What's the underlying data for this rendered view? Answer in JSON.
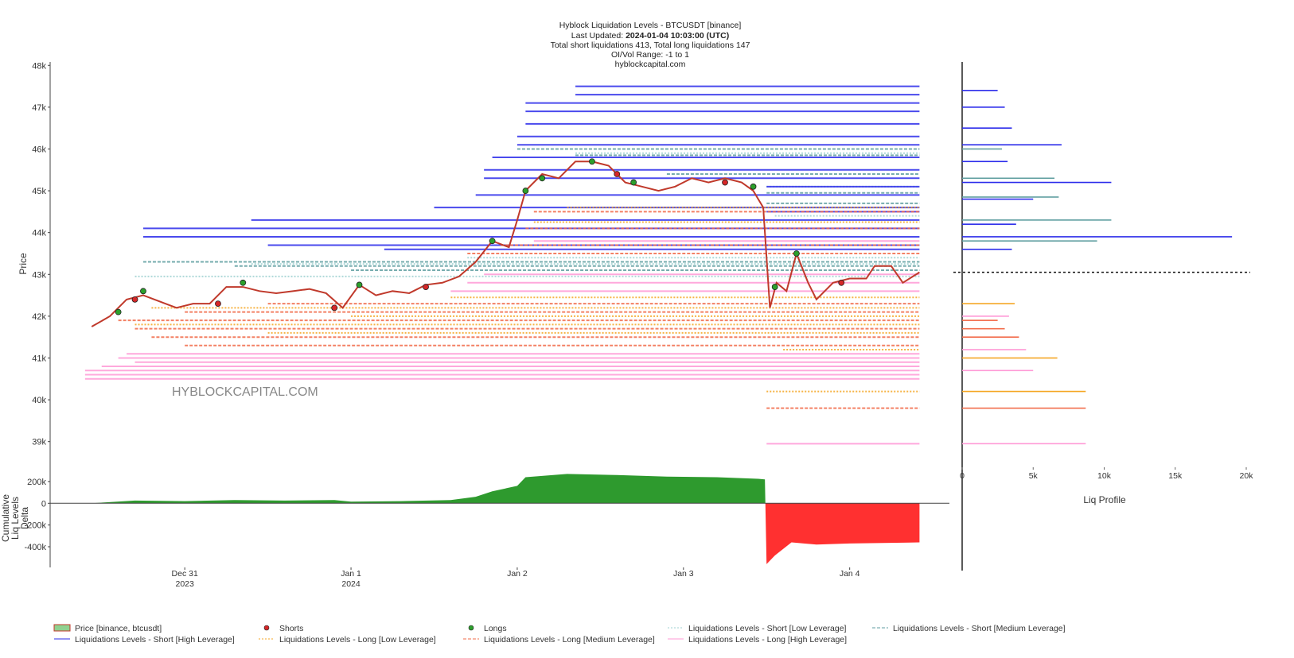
{
  "chart_data": [
    {
      "type": "line",
      "title": "Hyblock Liquidation Levels - BTCUSDT [binance]",
      "updated_label": "Last Updated:",
      "updated": "2024-01-04 10:03:00 (UTC)",
      "summary": "Total short liquidations 413, Total long liquidations 147",
      "range_note": "OI/Vol Range: -1 to 1",
      "source": "hyblockcapital.com",
      "watermark": "HYBLOCKCAPITAL.COM",
      "ylabel": "Price",
      "xlim": [
        -0.81,
        4.6
      ],
      "ylim": [
        38500,
        48100
      ],
      "yticks": [
        {
          "value": 39000,
          "label": "39k"
        },
        {
          "value": 40000,
          "label": "40k"
        },
        {
          "value": 41000,
          "label": "41k"
        },
        {
          "value": 42000,
          "label": "42k"
        },
        {
          "value": 43000,
          "label": "43k"
        },
        {
          "value": 44000,
          "label": "44k"
        },
        {
          "value": 45000,
          "label": "45k"
        },
        {
          "value": 46000,
          "label": "46k"
        },
        {
          "value": 47000,
          "label": "47k"
        },
        {
          "value": 48000,
          "label": "48k"
        }
      ],
      "series": [
        {
          "name": "Price [binance, btcusdt]",
          "kind": "line",
          "color": "#c0392b",
          "x": [
            -0.56,
            -0.45,
            -0.35,
            -0.25,
            -0.15,
            -0.05,
            0.05,
            0.15,
            0.25,
            0.35,
            0.45,
            0.55,
            0.65,
            0.75,
            0.85,
            0.95,
            1.05,
            1.15,
            1.25,
            1.35,
            1.45,
            1.55,
            1.65,
            1.75,
            1.85,
            1.95,
            2.0,
            2.05,
            2.15,
            2.25,
            2.35,
            2.45,
            2.55,
            2.65,
            2.75,
            2.85,
            2.95,
            3.05,
            3.15,
            3.25,
            3.35,
            3.42,
            3.48,
            3.52,
            3.56,
            3.62,
            3.68,
            3.75,
            3.8,
            3.9,
            4.0,
            4.1,
            4.15,
            4.25,
            4.32,
            4.42
          ],
          "values": [
            41750,
            42000,
            42400,
            42500,
            42350,
            42200,
            42300,
            42300,
            42700,
            42700,
            42600,
            42550,
            42600,
            42650,
            42550,
            42200,
            42750,
            42500,
            42600,
            42550,
            42750,
            42800,
            42950,
            43300,
            43800,
            43650,
            44300,
            45000,
            45400,
            45300,
            45700,
            45700,
            45600,
            45200,
            45100,
            45000,
            45100,
            45300,
            45200,
            45300,
            45200,
            45000,
            44600,
            42200,
            42800,
            42600,
            43500,
            42800,
            42400,
            42800,
            42900,
            42900,
            43200,
            43200,
            42800,
            43050
          ]
        },
        {
          "name": "Shorts",
          "kind": "scatter",
          "color": "#d62728",
          "x": [
            -0.3,
            0.2,
            0.9,
            1.45,
            2.6,
            3.25,
            3.95
          ],
          "values": [
            42400,
            42300,
            42200,
            42700,
            45400,
            45200,
            42800
          ]
        },
        {
          "name": "Longs",
          "kind": "scatter",
          "color": "#2ca02c",
          "x": [
            -0.4,
            -0.25,
            0.35,
            1.05,
            1.85,
            2.05,
            2.15,
            2.45,
            2.7,
            3.42,
            3.68,
            3.55
          ],
          "values": [
            42100,
            42600,
            42800,
            42750,
            43800,
            45000,
            45300,
            45700,
            45200,
            45100,
            43500,
            42700
          ]
        },
        {
          "name": "Liquidations Levels - Short [Low Leverage]",
          "kind": "level",
          "color": "#9fd2d2",
          "dash": "2,2",
          "x": [
            2.35,
            3.5,
            3.55,
            1.7,
            0.4,
            -0.3
          ],
          "values": [
            45900,
            45100,
            44400,
            43400,
            43250,
            42950
          ]
        },
        {
          "name": "Liquidations Levels - Short [Medium Leverage]",
          "kind": "level",
          "color": "#5f9ea0",
          "dash": "4,2",
          "x": [
            2.0,
            2.35,
            2.9,
            3.5,
            3.5,
            -0.25,
            0.3,
            1.0
          ],
          "values": [
            46000,
            45850,
            45400,
            44950,
            44700,
            43300,
            43200,
            43100
          ]
        },
        {
          "name": "Liquidations Levels - Short [High Leverage]",
          "kind": "level",
          "color": "#2b2bea",
          "dash": "none",
          "x": [
            2.35,
            2.35,
            2.05,
            2.05,
            2.05,
            2.0,
            2.0,
            1.85,
            1.8,
            1.8,
            1.75,
            1.5,
            0.4,
            -0.25,
            -0.25,
            0.5,
            1.2,
            3.5,
            3.5
          ],
          "values": [
            47500,
            47300,
            47100,
            46900,
            46600,
            46300,
            46100,
            45800,
            45500,
            45300,
            44900,
            44600,
            44300,
            44100,
            43900,
            43700,
            43600,
            44500,
            45100
          ]
        },
        {
          "name": "Liquidations Levels - Long [Low Leverage]",
          "kind": "level",
          "color": "#f5a623",
          "dash": "2,2",
          "x": [
            2.3,
            2.1,
            1.6,
            -0.2,
            1.0,
            -0.3,
            0.5,
            3.5,
            3.6
          ],
          "values": [
            44600,
            44250,
            42450,
            42200,
            42000,
            41800,
            41600,
            40200,
            41200
          ]
        },
        {
          "name": "Liquidations Levels - Long [Medium Leverage]",
          "kind": "level",
          "color": "#f26b4a",
          "dash": "4,2",
          "x": [
            2.1,
            2.05,
            1.9,
            1.7,
            0.5,
            0.0,
            -0.4,
            -0.3,
            -0.2,
            0.0,
            3.5
          ],
          "values": [
            44500,
            44100,
            43700,
            43500,
            42300,
            42100,
            41900,
            41700,
            41500,
            41300,
            39800
          ]
        },
        {
          "name": "Liquidations Levels - Long [High Leverage]",
          "kind": "level",
          "color": "#ff99d6",
          "dash": "none",
          "x": [
            2.1,
            1.8,
            1.7,
            1.6,
            -0.35,
            -0.4,
            -0.3,
            -0.5,
            -0.6,
            -0.6,
            -0.6,
            3.5
          ],
          "values": [
            43800,
            43000,
            42800,
            42600,
            41100,
            41000,
            40900,
            40800,
            40700,
            40600,
            40500,
            38950
          ]
        }
      ]
    },
    {
      "type": "area",
      "ylabel_lines": [
        "Cumulative",
        "Liq Levels",
        "Delta"
      ],
      "color": "#2e9a2e",
      "negative_color": "#ff3030",
      "xlim": [
        -0.81,
        4.6
      ],
      "ylim": [
        -590000,
        280000
      ],
      "yticks": [
        {
          "value": 200000,
          "label": "200k"
        },
        0,
        {
          "value": -200000,
          "label": "-200k"
        },
        {
          "value": -400000,
          "label": "-400k"
        }
      ],
      "xticks": [
        {
          "value": 0,
          "label": "Dec 31"
        },
        {
          "value": 1,
          "label": "Jan 1"
        },
        {
          "value": 2,
          "label": "Jan 2"
        },
        {
          "value": 3,
          "label": "Jan 3"
        },
        {
          "value": 4,
          "label": "Jan 4"
        }
      ],
      "xtick_years": [
        {
          "value": 0,
          "label": "2023"
        },
        {
          "value": 1,
          "label": "2024"
        }
      ],
      "x": [
        -0.56,
        -0.3,
        0,
        0.3,
        0.6,
        0.9,
        1.0,
        1.3,
        1.6,
        1.75,
        1.85,
        2.0,
        2.05,
        2.3,
        2.6,
        2.9,
        3.2,
        3.45,
        3.49,
        3.5,
        3.55,
        3.65,
        3.8,
        4.0,
        4.42
      ],
      "values": [
        0,
        25000,
        20000,
        30000,
        25000,
        30000,
        15000,
        20000,
        30000,
        60000,
        110000,
        160000,
        240000,
        270000,
        260000,
        245000,
        240000,
        225000,
        220000,
        -560000,
        -480000,
        -360000,
        -380000,
        -370000,
        -360000
      ]
    },
    {
      "type": "bar",
      "orientation": "horizontal",
      "xlabel": "Liq Profile",
      "xlim": [
        0,
        20000
      ],
      "ylim": [
        38500,
        48100
      ],
      "current_price": 43050,
      "xticks": [
        0,
        {
          "value": 5000,
          "label": "5k"
        },
        {
          "value": 10000,
          "label": "10k"
        },
        {
          "value": 15000,
          "label": "15k"
        },
        {
          "value": 20000,
          "label": "20k"
        }
      ],
      "series": [
        {
          "color": "#2b2bea",
          "prices": [
            47400,
            47000,
            46500,
            46100,
            45700,
            45200,
            44800,
            44200,
            43900,
            43600
          ],
          "values": [
            2500,
            3000,
            3500,
            7000,
            3200,
            10500,
            5000,
            3800,
            19000,
            3500
          ]
        },
        {
          "color": "#5f9ea0",
          "prices": [
            46000,
            45300,
            44850,
            44300,
            43800
          ],
          "values": [
            2800,
            6500,
            6800,
            10500,
            9500
          ]
        },
        {
          "color": "#f5a623",
          "prices": [
            42300,
            41000,
            40200
          ],
          "values": [
            3700,
            6700,
            8700
          ]
        },
        {
          "color": "#f26b4a",
          "prices": [
            41900,
            41700,
            41500,
            39800
          ],
          "values": [
            2500,
            3000,
            4000,
            8700
          ]
        },
        {
          "color": "#ff99d6",
          "prices": [
            42000,
            41200,
            40700,
            38950
          ],
          "values": [
            3300,
            4500,
            5000,
            8700
          ]
        }
      ]
    }
  ]
}
